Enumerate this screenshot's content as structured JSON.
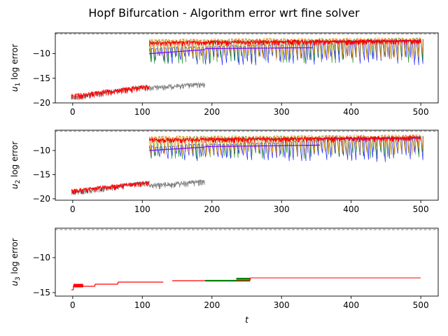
{
  "figure": {
    "title": "Hopf Bifurcation - Algorithm error wrt fine solver",
    "colors": {
      "fine": "#808080",
      "blue": "#0000ff",
      "green": "#008000",
      "red": "#ff0000",
      "orange": "#ff8c00",
      "purple": "#8000ff"
    }
  },
  "chart_data": [
    {
      "type": "line",
      "ylabel": "u_1 log error",
      "ylabel_sub": "1",
      "xlim": [
        -25,
        525
      ],
      "ylim": [
        -20,
        -5.8
      ],
      "xticks": [
        0,
        100,
        200,
        300,
        400,
        500
      ],
      "xtick_labels": [
        "0",
        "100",
        "200",
        "300",
        "400",
        "500"
      ],
      "yticks": [
        -20,
        -15,
        -10
      ],
      "ytick_labels": [
        "−20",
        "−15",
        "−10"
      ],
      "reference_line_y": -6,
      "series": [
        {
          "color": "#808080",
          "kind": "jagged",
          "segments": [
            [
              -2,
              -18.5,
              110,
              -16.2,
              1.2
            ],
            [
              110,
              -16.5,
              190,
              -15.8,
              1.2
            ],
            [
              190,
              -7.5,
              500,
              -7.2,
              0.6
            ]
          ]
        },
        {
          "color": "#0000ff",
          "kind": "spiky",
          "segments": [
            [
              110,
              -9.0,
              500,
              -7.2,
              -11.8,
              6
            ]
          ]
        },
        {
          "color": "#008000",
          "kind": "spiky",
          "segments": [
            [
              110,
              -7.3,
              500,
              -7.0,
              -11.5,
              5
            ]
          ]
        },
        {
          "color": "#ff8c00",
          "kind": "spiky",
          "segments": [
            [
              110,
              -7.2,
              500,
              -6.9,
              -10.8,
              5
            ]
          ]
        },
        {
          "color": "#8000ff",
          "kind": "step",
          "segments": [
            [
              110,
              -10.0,
              190,
              -9.2
            ],
            [
              190,
              -9.0,
              345,
              -8.8
            ],
            [
              345,
              -7.6,
              500,
              -7.4
            ]
          ]
        },
        {
          "color": "#ff0000",
          "kind": "jagged",
          "segments": [
            [
              -2,
              -18.2,
              110,
              -16.2,
              1.4
            ],
            [
              110,
              -7.4,
              500,
              -7.0,
              1.2
            ]
          ]
        }
      ]
    },
    {
      "type": "line",
      "ylabel": "u_2 log error",
      "ylabel_sub": "2",
      "xlim": [
        -25,
        525
      ],
      "ylim": [
        -20.3,
        -5.8
      ],
      "xticks": [
        0,
        100,
        200,
        300,
        400,
        500
      ],
      "xtick_labels": [
        "0",
        "100",
        "200",
        "300",
        "400",
        "500"
      ],
      "yticks": [
        -20,
        -15,
        -10
      ],
      "ytick_labels": [
        "−20",
        "−15",
        "−10"
      ],
      "reference_line_y": -6,
      "series": [
        {
          "color": "#808080",
          "kind": "jagged",
          "segments": [
            [
              -2,
              -18.3,
              110,
              -16.2,
              1.2
            ],
            [
              110,
              -16.8,
              190,
              -16.0,
              1.4
            ],
            [
              190,
              -7.4,
              500,
              -7.2,
              0.6
            ]
          ]
        },
        {
          "color": "#0000ff",
          "kind": "spiky",
          "segments": [
            [
              110,
              -9.2,
              500,
              -7.2,
              -11.8,
              6
            ]
          ]
        },
        {
          "color": "#008000",
          "kind": "spiky",
          "segments": [
            [
              110,
              -7.3,
              500,
              -7.0,
              -11.2,
              5
            ]
          ]
        },
        {
          "color": "#ff8c00",
          "kind": "spiky",
          "segments": [
            [
              110,
              -7.2,
              500,
              -6.9,
              -10.5,
              5
            ]
          ]
        },
        {
          "color": "#8000ff",
          "kind": "step",
          "segments": [
            [
              110,
              -10.0,
              190,
              -9.3
            ],
            [
              190,
              -9.2,
              355,
              -8.9
            ],
            [
              355,
              -7.6,
              500,
              -7.4
            ]
          ]
        },
        {
          "color": "#ff0000",
          "kind": "jagged",
          "segments": [
            [
              -2,
              -18.0,
              110,
              -16.2,
              1.3
            ],
            [
              110,
              -7.4,
              500,
              -7.0,
              1.2
            ]
          ]
        }
      ]
    },
    {
      "type": "line",
      "ylabel": "u_3 log error",
      "ylabel_sub": "3",
      "xlabel": "t",
      "xlim": [
        -25,
        525
      ],
      "ylim": [
        -15.5,
        -5.8
      ],
      "xticks": [
        0,
        100,
        200,
        300,
        400,
        500
      ],
      "xtick_labels": [
        "0",
        "100",
        "200",
        "300",
        "400",
        "500"
      ],
      "yticks": [
        -15,
        -10
      ],
      "ytick_labels": [
        "−15",
        "−10"
      ],
      "reference_line_y": -6,
      "series": [
        {
          "color": "#008000",
          "kind": "levels",
          "segments": [
            [
              190,
              255,
              -13.3,
              2.2
            ],
            [
              235,
              255,
              -13.0,
              2.2
            ]
          ]
        },
        {
          "color": "#ff0000",
          "kind": "levels",
          "segments": [
            [
              -2,
              1,
              -14.6,
              1.2
            ],
            [
              1,
              15,
              -14.0,
              5
            ],
            [
              15,
              32,
              -14.1,
              1.2
            ],
            [
              32,
              65,
              -13.8,
              1.2
            ],
            [
              65,
              130,
              -13.5,
              1.2
            ],
            [
              143,
              190,
              -13.3,
              1.2
            ],
            [
              235,
              255,
              -13.2,
              1.2
            ],
            [
              255,
              500,
              -12.9,
              1
            ]
          ]
        }
      ]
    }
  ]
}
